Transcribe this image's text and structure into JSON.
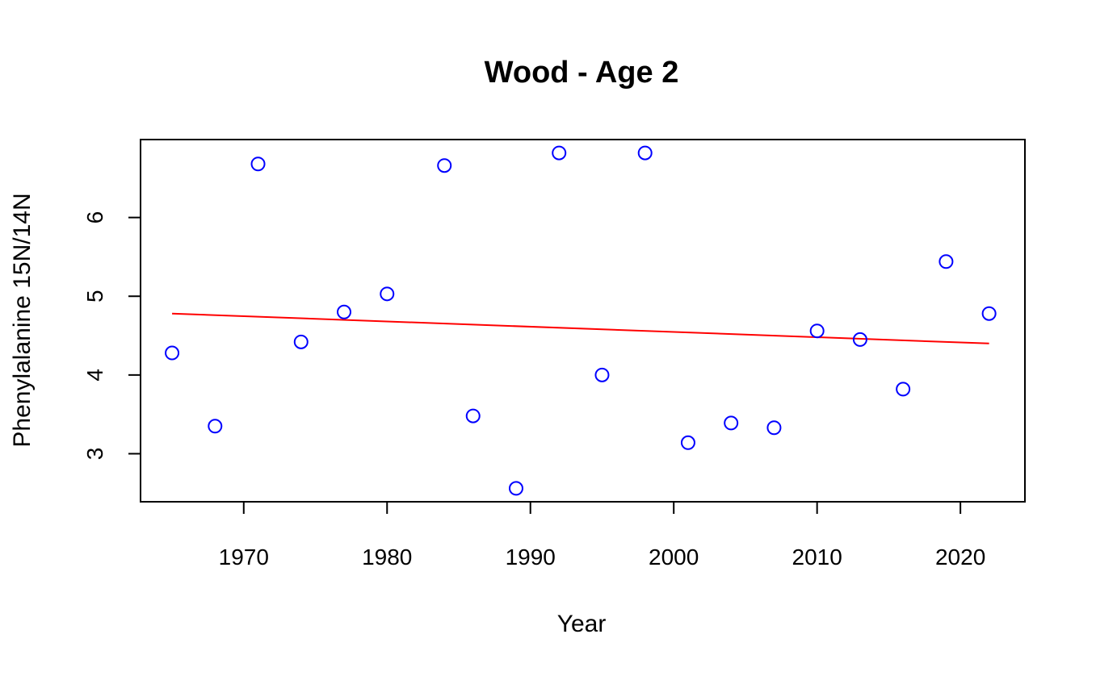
{
  "chart_data": {
    "type": "scatter",
    "title": "Wood - Age 2",
    "xlabel": "Year",
    "ylabel": "Phenylalanine 15N/14N",
    "xlim": [
      1962.8,
      2024.5
    ],
    "ylim": [
      2.39,
      6.99
    ],
    "x_ticks": [
      1970,
      1980,
      1990,
      2000,
      2010,
      2020
    ],
    "y_ticks": [
      3,
      4,
      5,
      6
    ],
    "x_tick_labels": [
      "1970",
      "1980",
      "1990",
      "2000",
      "2010",
      "2020"
    ],
    "y_tick_labels": [
      "3",
      "4",
      "5",
      "6"
    ],
    "grid": false,
    "legend": "none",
    "points": [
      {
        "x": 1965,
        "y": 4.28
      },
      {
        "x": 1968,
        "y": 3.35
      },
      {
        "x": 1971,
        "y": 6.68
      },
      {
        "x": 1974,
        "y": 4.42
      },
      {
        "x": 1977,
        "y": 4.8
      },
      {
        "x": 1980,
        "y": 5.03
      },
      {
        "x": 1984,
        "y": 6.66
      },
      {
        "x": 1986,
        "y": 3.48
      },
      {
        "x": 1989,
        "y": 2.56
      },
      {
        "x": 1992,
        "y": 6.82
      },
      {
        "x": 1995,
        "y": 4.0
      },
      {
        "x": 1998,
        "y": 6.82
      },
      {
        "x": 2001,
        "y": 3.14
      },
      {
        "x": 2004,
        "y": 3.39
      },
      {
        "x": 2007,
        "y": 3.33
      },
      {
        "x": 2010,
        "y": 4.56
      },
      {
        "x": 2013,
        "y": 4.45
      },
      {
        "x": 2016,
        "y": 3.82
      },
      {
        "x": 2019,
        "y": 5.44
      },
      {
        "x": 2022,
        "y": 4.78
      }
    ],
    "trend_line": {
      "x": [
        1965,
        2022
      ],
      "y": [
        4.78,
        4.4
      ]
    },
    "colors": {
      "points": "#0000ff",
      "trend_line": "#ff0000",
      "axes": "#000000"
    }
  }
}
